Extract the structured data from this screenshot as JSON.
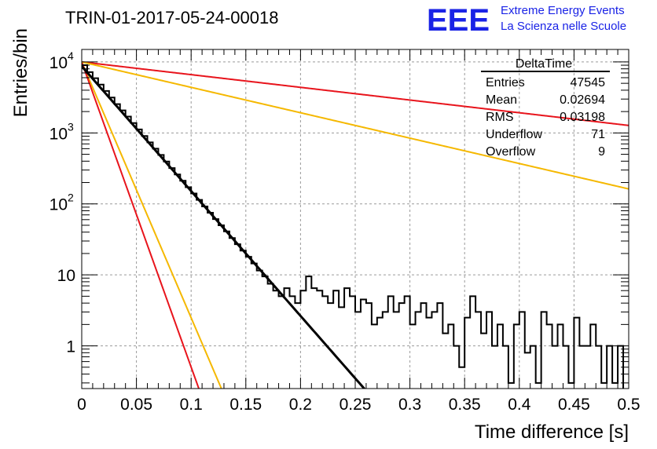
{
  "header": {
    "title": "TRIN-01-2017-05-24-00018",
    "logo_text": "EEE",
    "logo_line1": "Extreme Energy Events",
    "logo_line2": "La Scienza nelle Scuole"
  },
  "stats": {
    "name": "DeltaTime",
    "rows": [
      {
        "label": "Entries",
        "value": "47545"
      },
      {
        "label": "Mean",
        "value": "0.02694"
      },
      {
        "label": "RMS",
        "value": "0.03198"
      },
      {
        "label": "Underflow",
        "value": "71"
      },
      {
        "label": "Overflow",
        "value": "9"
      }
    ]
  },
  "colors": {
    "histogram": "#000000",
    "fit": "#000000",
    "band_inner": "#e8141c",
    "band_outer": "#f5b800",
    "grid": "#9a9a9a",
    "logo": "#1a23e6"
  },
  "chart_data": {
    "type": "line",
    "title": "TRIN-01-2017-05-24-00018",
    "xlabel": "Time difference [s]",
    "ylabel": "Entries/bin",
    "xlim": [
      0,
      0.5
    ],
    "ylim": [
      0.25,
      15000
    ],
    "y_scale": "log",
    "grid": true,
    "x_ticks": [
      "0",
      "0.05",
      "0.1",
      "0.15",
      "0.2",
      "0.25",
      "0.3",
      "0.35",
      "0.4",
      "0.45",
      "0.5"
    ],
    "y_ticks": [
      {
        "value": 1,
        "base": "1",
        "exp": ""
      },
      {
        "value": 10,
        "base": "10",
        "exp": ""
      },
      {
        "value": 100,
        "base": "10",
        "exp": "2"
      },
      {
        "value": 1000,
        "base": "10",
        "exp": "3"
      },
      {
        "value": 10000,
        "base": "10",
        "exp": "4"
      }
    ],
    "histogram": {
      "bin_width": 0.005,
      "x_start": 0,
      "values": [
        9000,
        7200,
        5900,
        4800,
        3900,
        3150,
        2550,
        2080,
        1700,
        1380,
        1120,
        905,
        735,
        600,
        490,
        395,
        320,
        260,
        212,
        172,
        140,
        114,
        92,
        75,
        61,
        50,
        41,
        33,
        27,
        22,
        18,
        14.5,
        11.5,
        9.5,
        7.5,
        6.0,
        5.0,
        6.5,
        5.0,
        4.0,
        6.0,
        9.5,
        6.5,
        6.0,
        5.0,
        4.0,
        6.0,
        3.5,
        6.5,
        5.0,
        3.0,
        4.5,
        4.0,
        2.0,
        2.5,
        3.0,
        5.0,
        3.0,
        4.0,
        5.0,
        2.0,
        3.0,
        4.0,
        2.5,
        3.0,
        4.0,
        1.5,
        2.0,
        1.0,
        0.5,
        2.5,
        5.0,
        3.0,
        1.5,
        3.0,
        1.0,
        2.0,
        1.0,
        0.3,
        2.0,
        3.0,
        0.8,
        1.0,
        0.3,
        3.0,
        2.0,
        1.0,
        2.0,
        1.0,
        0.3,
        2.5,
        1.0,
        1.0,
        2.0,
        1.0,
        0.3,
        1.0,
        0.3,
        1.0,
        0.2
      ]
    },
    "series": [
      {
        "style": "fit",
        "y0": 8700,
        "decay_rate": 40.5
      },
      {
        "style": "band-outer",
        "y0": 10000,
        "decay_rate": 83
      },
      {
        "style": "band-inner",
        "y0": 10000,
        "decay_rate": 99
      },
      {
        "style": "band-inner",
        "y0": 10000,
        "decay_rate": 4.12
      },
      {
        "style": "band-outer",
        "y0": 10000,
        "decay_rate": 8.24
      }
    ]
  }
}
